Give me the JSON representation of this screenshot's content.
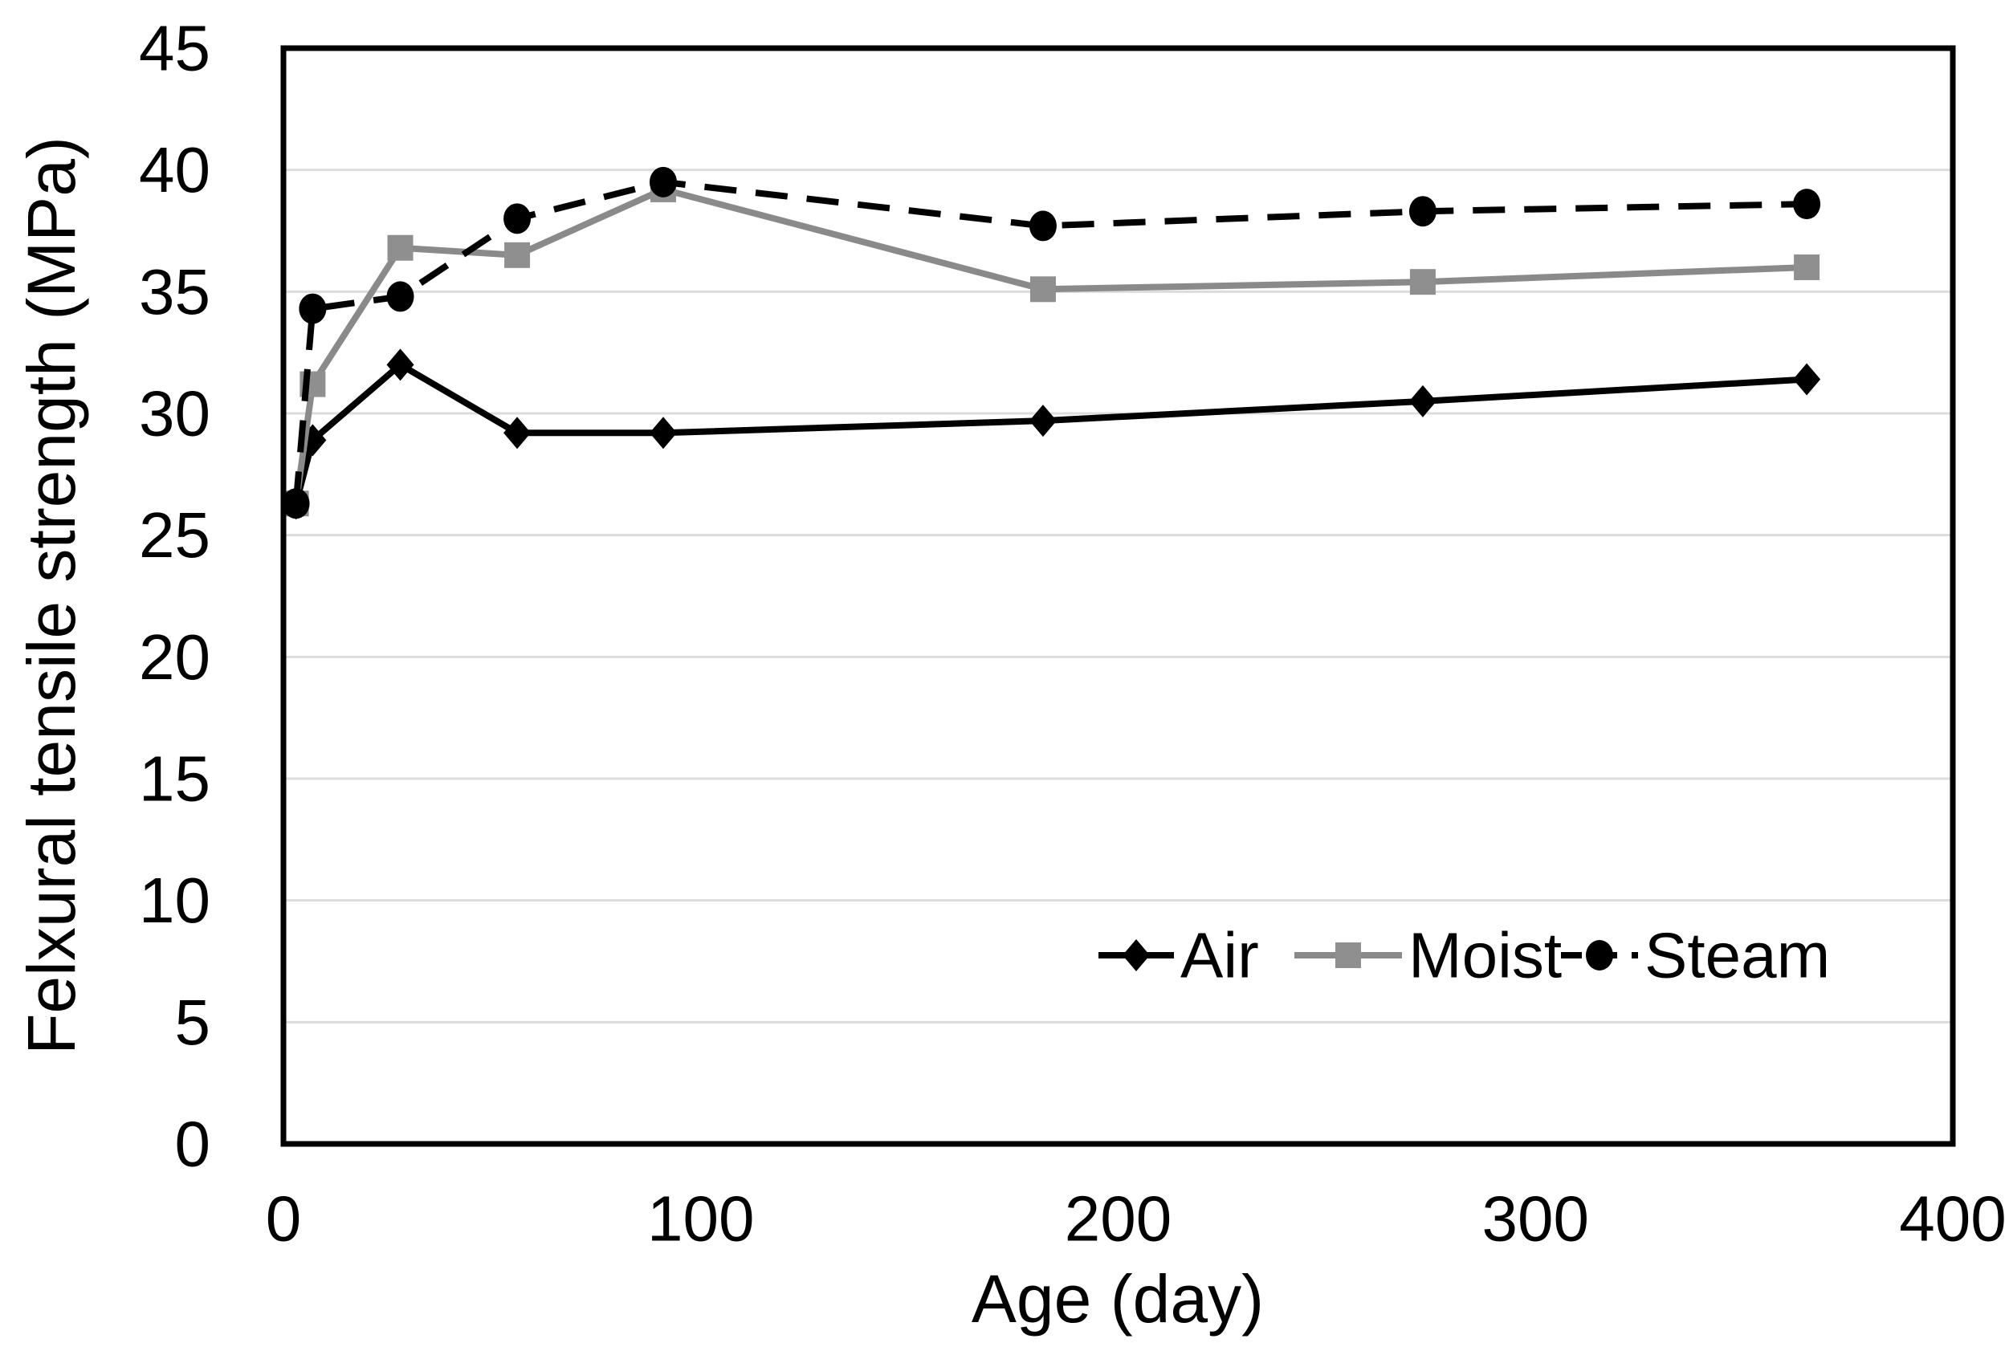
{
  "figure": {
    "background": "#ffffff",
    "frame_color": "#000000",
    "gridline_color": "#dcdcdc"
  },
  "chart_data": {
    "type": "line",
    "title": "",
    "xlabel": "Age (day)",
    "ylabel": "Felxural tensile strength (MPa)",
    "x": [
      3,
      7,
      28,
      56,
      91,
      182,
      273,
      365
    ],
    "series": [
      {
        "name": "Air",
        "values": [
          26.3,
          28.9,
          32.0,
          29.2,
          29.2,
          29.7,
          30.5,
          31.4
        ],
        "color": "#000000",
        "marker": "diamond",
        "line_style": "solid"
      },
      {
        "name": "Moist",
        "values": [
          26.3,
          31.2,
          36.8,
          36.5,
          39.2,
          35.1,
          35.4,
          36.0
        ],
        "color": "#8a8a8a",
        "marker": "square",
        "marker_color": "#8f8f8f",
        "line_style": "solid"
      },
      {
        "name": "Steam",
        "values": [
          26.3,
          34.3,
          34.8,
          38.0,
          39.5,
          37.7,
          38.3,
          38.6
        ],
        "color": "#000000",
        "marker": "circle",
        "line_style": "dashed"
      }
    ],
    "xlim": [
      0,
      400
    ],
    "ylim": [
      0,
      45
    ],
    "x_ticks": [
      0,
      100,
      200,
      300,
      400
    ],
    "y_ticks": [
      0,
      5,
      10,
      15,
      20,
      25,
      30,
      35,
      40,
      45
    ],
    "grid": "horizontal-only",
    "legend_position": "inside-lower-right",
    "legend_labels": [
      "Air",
      "Moist",
      "Steam"
    ]
  }
}
